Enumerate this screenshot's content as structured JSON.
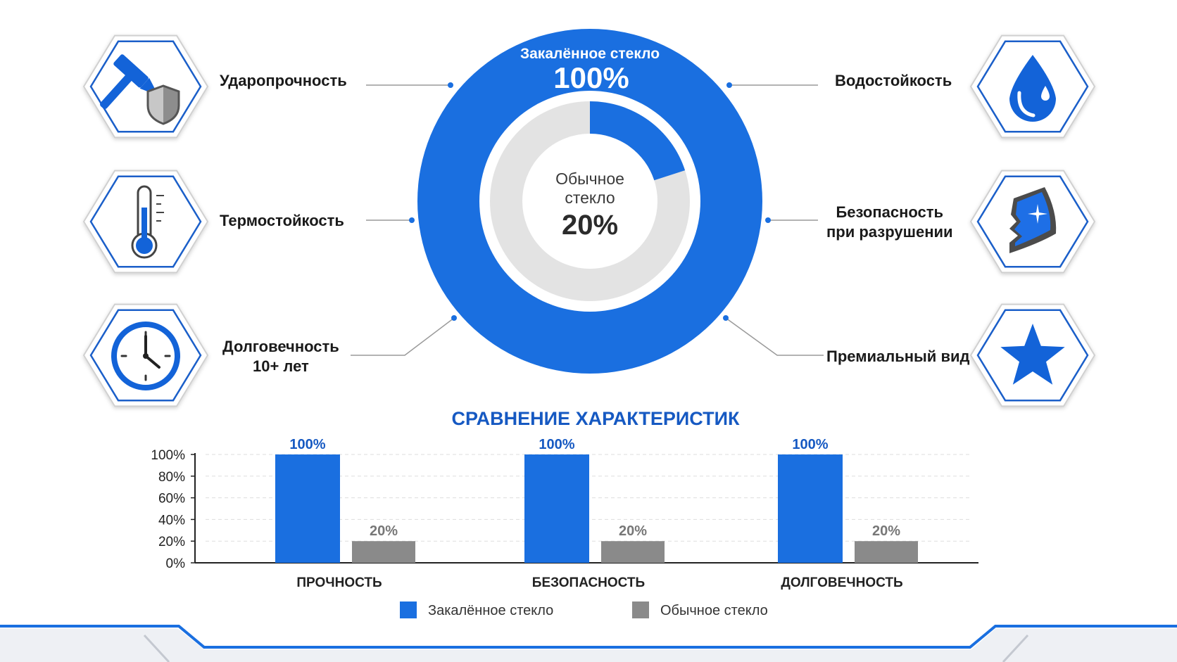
{
  "colors": {
    "accent": "#1a6fe0",
    "accent_dark": "#0f55c4",
    "grey_bar": "#8a8a8a",
    "grey_ring": "#e3e3e3",
    "hex_border": "#1b5fc9"
  },
  "features_left": [
    {
      "label": "Ударопрочность",
      "icon": "hammer-shield-icon"
    },
    {
      "label": "Термостойкость",
      "icon": "thermometer-icon"
    },
    {
      "label": "Долговечность\n10+ лет",
      "icon": "clock-icon"
    }
  ],
  "features_right": [
    {
      "label": "Водостойкость",
      "icon": "water-drop-icon"
    },
    {
      "label": "Безопасность\nпри разрушении",
      "icon": "glass-shard-icon"
    },
    {
      "label": "Премиальный вид",
      "icon": "star-icon"
    }
  ],
  "donut": {
    "outer_label": "Закалённое стекло",
    "outer_value_label": "100%",
    "outer_value": 100,
    "inner_label_line1": "Обычное",
    "inner_label_line2": "стекло",
    "inner_value_label": "20%",
    "inner_value": 20
  },
  "chart_data": {
    "type": "bar",
    "title": "СРАВНЕНИЕ ХАРАКТЕРИСТИК",
    "categories": [
      "ПРОЧНОСТЬ",
      "БЕЗОПАСНОСТЬ",
      "ДОЛГОВЕЧНОСТЬ"
    ],
    "series": [
      {
        "name": "Закалённое стекло",
        "values": [
          100,
          100,
          100
        ],
        "color": "#1a6fe0"
      },
      {
        "name": "Обычное стекло",
        "values": [
          20,
          20,
          20
        ],
        "color": "#8a8a8a"
      }
    ],
    "data_labels": [
      [
        "100%",
        "100%",
        "100%"
      ],
      [
        "20%",
        "20%",
        "20%"
      ]
    ],
    "ylim": [
      0,
      100
    ],
    "y_ticks": [
      0,
      20,
      40,
      60,
      80,
      100
    ],
    "y_tick_labels": [
      "0%",
      "20%",
      "40%",
      "60%",
      "80%",
      "100%"
    ],
    "grid": true,
    "legend_position": "bottom"
  }
}
